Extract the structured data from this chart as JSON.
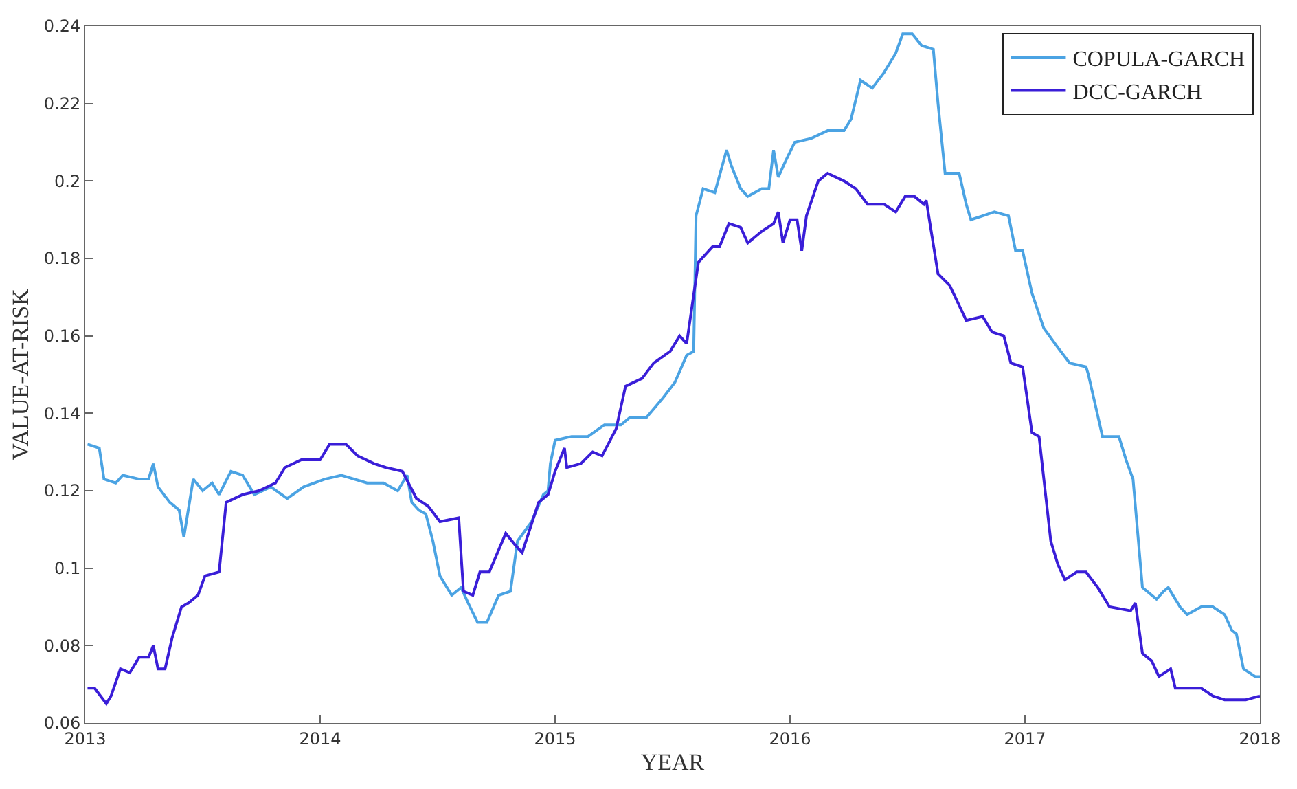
{
  "chart_data": {
    "type": "line",
    "xlabel": "YEAR",
    "ylabel": "VALUE-AT-RISK",
    "xlim": [
      2013,
      2018
    ],
    "xticks": [
      2013,
      2014,
      2015,
      2016,
      2017,
      2018
    ],
    "ylim": [
      0.06,
      0.24
    ],
    "yticks": [
      0.06,
      0.08,
      {
        "value": 0.1,
        "label": "0.1"
      },
      0.12,
      0.14,
      0.16,
      0.18,
      {
        "value": 0.2,
        "label": "0.2"
      },
      0.22,
      0.24
    ],
    "legend": "top right",
    "line_style": "solid",
    "marker": "none",
    "series": [
      {
        "name": "COPULA-GARCH",
        "color": "#4ba3e3",
        "x": [
          2013.01,
          2013.06,
          2013.08,
          2013.13,
          2013.16,
          2013.23,
          2013.27,
          2013.29,
          2013.31,
          2013.36,
          2013.4,
          2013.42,
          2013.46,
          2013.5,
          2013.54,
          2013.57,
          2013.62,
          2013.67,
          2013.72,
          2013.79,
          2013.86,
          2013.93,
          2014.02,
          2014.09,
          2014.2,
          2014.27,
          2014.33,
          2014.37,
          2014.39,
          2014.42,
          2014.45,
          2014.48,
          2014.51,
          2014.56,
          2014.6,
          2014.63,
          2014.67,
          2014.71,
          2014.76,
          2014.81,
          2014.84,
          2014.9,
          2014.95,
          2014.97,
          2014.98,
          2015.0,
          2015.07,
          2015.14,
          2015.21,
          2015.28,
          2015.32,
          2015.39,
          2015.46,
          2015.51,
          2015.56,
          2015.59,
          2015.6,
          2015.63,
          2015.68,
          2015.73,
          2015.75,
          2015.79,
          2015.82,
          2015.88,
          2015.91,
          2015.93,
          2015.95,
          2015.98,
          2016.02,
          2016.09,
          2016.16,
          2016.23,
          2016.26,
          2016.3,
          2016.35,
          2016.4,
          2016.45,
          2016.48,
          2016.52,
          2016.56,
          2016.61,
          2016.63,
          2016.66,
          2016.72,
          2016.75,
          2016.77,
          2016.82,
          2016.87,
          2016.93,
          2016.96,
          2016.99,
          2017.03,
          2017.08,
          2017.14,
          2017.19,
          2017.26,
          2017.27,
          2017.33,
          2017.4,
          2017.43,
          2017.46,
          2017.5,
          2017.56,
          2017.59,
          2017.61,
          2017.66,
          2017.69,
          2017.75,
          2017.8,
          2017.85,
          2017.88,
          2017.9,
          2017.93,
          2017.98,
          2018.0
        ],
        "values": [
          0.132,
          0.131,
          0.123,
          0.122,
          0.124,
          0.123,
          0.123,
          0.127,
          0.121,
          0.117,
          0.115,
          0.108,
          0.123,
          0.12,
          0.122,
          0.119,
          0.125,
          0.124,
          0.119,
          0.121,
          0.118,
          0.121,
          0.123,
          0.124,
          0.122,
          0.122,
          0.12,
          0.124,
          0.117,
          0.115,
          0.114,
          0.107,
          0.098,
          0.093,
          0.095,
          0.091,
          0.086,
          0.086,
          0.093,
          0.094,
          0.107,
          0.112,
          0.119,
          0.12,
          0.127,
          0.133,
          0.134,
          0.134,
          0.137,
          0.137,
          0.139,
          0.139,
          0.144,
          0.148,
          0.155,
          0.156,
          0.191,
          0.198,
          0.197,
          0.208,
          0.204,
          0.198,
          0.196,
          0.198,
          0.198,
          0.208,
          0.201,
          0.205,
          0.21,
          0.211,
          0.213,
          0.213,
          0.216,
          0.226,
          0.224,
          0.228,
          0.233,
          0.238,
          0.238,
          0.235,
          0.234,
          0.22,
          0.202,
          0.202,
          0.194,
          0.19,
          0.191,
          0.192,
          0.191,
          0.182,
          0.182,
          0.171,
          0.162,
          0.157,
          0.153,
          0.152,
          0.15,
          0.134,
          0.134,
          0.128,
          0.123,
          0.095,
          0.092,
          0.094,
          0.095,
          0.09,
          0.088,
          0.09,
          0.09,
          0.088,
          0.084,
          0.083,
          0.074,
          0.072,
          0.072
        ]
      },
      {
        "name": "DCC-GARCH",
        "color": "#3a1ed8",
        "x": [
          2013.01,
          2013.04,
          2013.09,
          2013.11,
          2013.15,
          2013.19,
          2013.23,
          2013.27,
          2013.29,
          2013.31,
          2013.34,
          2013.37,
          2013.41,
          2013.44,
          2013.48,
          2013.51,
          2013.57,
          2013.6,
          2013.67,
          2013.74,
          2013.81,
          2013.85,
          2013.92,
          2014.0,
          2014.04,
          2014.11,
          2014.16,
          2014.23,
          2014.28,
          2014.35,
          2014.41,
          2014.46,
          2014.51,
          2014.59,
          2014.61,
          2014.65,
          2014.68,
          2014.72,
          2014.79,
          2014.83,
          2014.86,
          2014.93,
          2014.97,
          2015.0,
          2015.04,
          2015.05,
          2015.11,
          2015.16,
          2015.2,
          2015.26,
          2015.3,
          2015.37,
          2015.42,
          2015.49,
          2015.53,
          2015.56,
          2015.61,
          2015.67,
          2015.7,
          2015.74,
          2015.79,
          2015.82,
          2015.88,
          2015.93,
          2015.95,
          2015.97,
          2016.0,
          2016.03,
          2016.05,
          2016.07,
          2016.12,
          2016.16,
          2016.23,
          2016.28,
          2016.33,
          2016.4,
          2016.45,
          2016.49,
          2016.53,
          2016.57,
          2016.58,
          2016.63,
          2016.68,
          2016.75,
          2016.82,
          2016.86,
          2016.91,
          2016.94,
          2016.99,
          2017.03,
          2017.06,
          2017.11,
          2017.14,
          2017.17,
          2017.22,
          2017.26,
          2017.31,
          2017.36,
          2017.45,
          2017.47,
          2017.5,
          2017.54,
          2017.57,
          2017.62,
          2017.64,
          2017.7,
          2017.75,
          2017.8,
          2017.85,
          2017.94,
          2018.0
        ],
        "values": [
          0.069,
          0.069,
          0.065,
          0.067,
          0.074,
          0.073,
          0.077,
          0.077,
          0.08,
          0.074,
          0.074,
          0.082,
          0.09,
          0.091,
          0.093,
          0.098,
          0.099,
          0.117,
          0.119,
          0.12,
          0.122,
          0.126,
          0.128,
          0.128,
          0.132,
          0.132,
          0.129,
          0.127,
          0.126,
          0.125,
          0.118,
          0.116,
          0.112,
          0.113,
          0.094,
          0.093,
          0.099,
          0.099,
          0.109,
          0.106,
          0.104,
          0.117,
          0.119,
          0.125,
          0.131,
          0.126,
          0.127,
          0.13,
          0.129,
          0.136,
          0.147,
          0.149,
          0.153,
          0.156,
          0.16,
          0.158,
          0.179,
          0.183,
          0.183,
          0.189,
          0.188,
          0.184,
          0.187,
          0.189,
          0.192,
          0.184,
          0.19,
          0.19,
          0.182,
          0.191,
          0.2,
          0.202,
          0.2,
          0.198,
          0.194,
          0.194,
          0.192,
          0.196,
          0.196,
          0.194,
          0.195,
          0.176,
          0.173,
          0.164,
          0.165,
          0.161,
          0.16,
          0.153,
          0.152,
          0.135,
          0.134,
          0.107,
          0.101,
          0.097,
          0.099,
          0.099,
          0.095,
          0.09,
          0.089,
          0.091,
          0.078,
          0.076,
          0.072,
          0.074,
          0.069,
          0.069,
          0.069,
          0.067,
          0.066,
          0.066,
          0.067
        ]
      }
    ]
  }
}
